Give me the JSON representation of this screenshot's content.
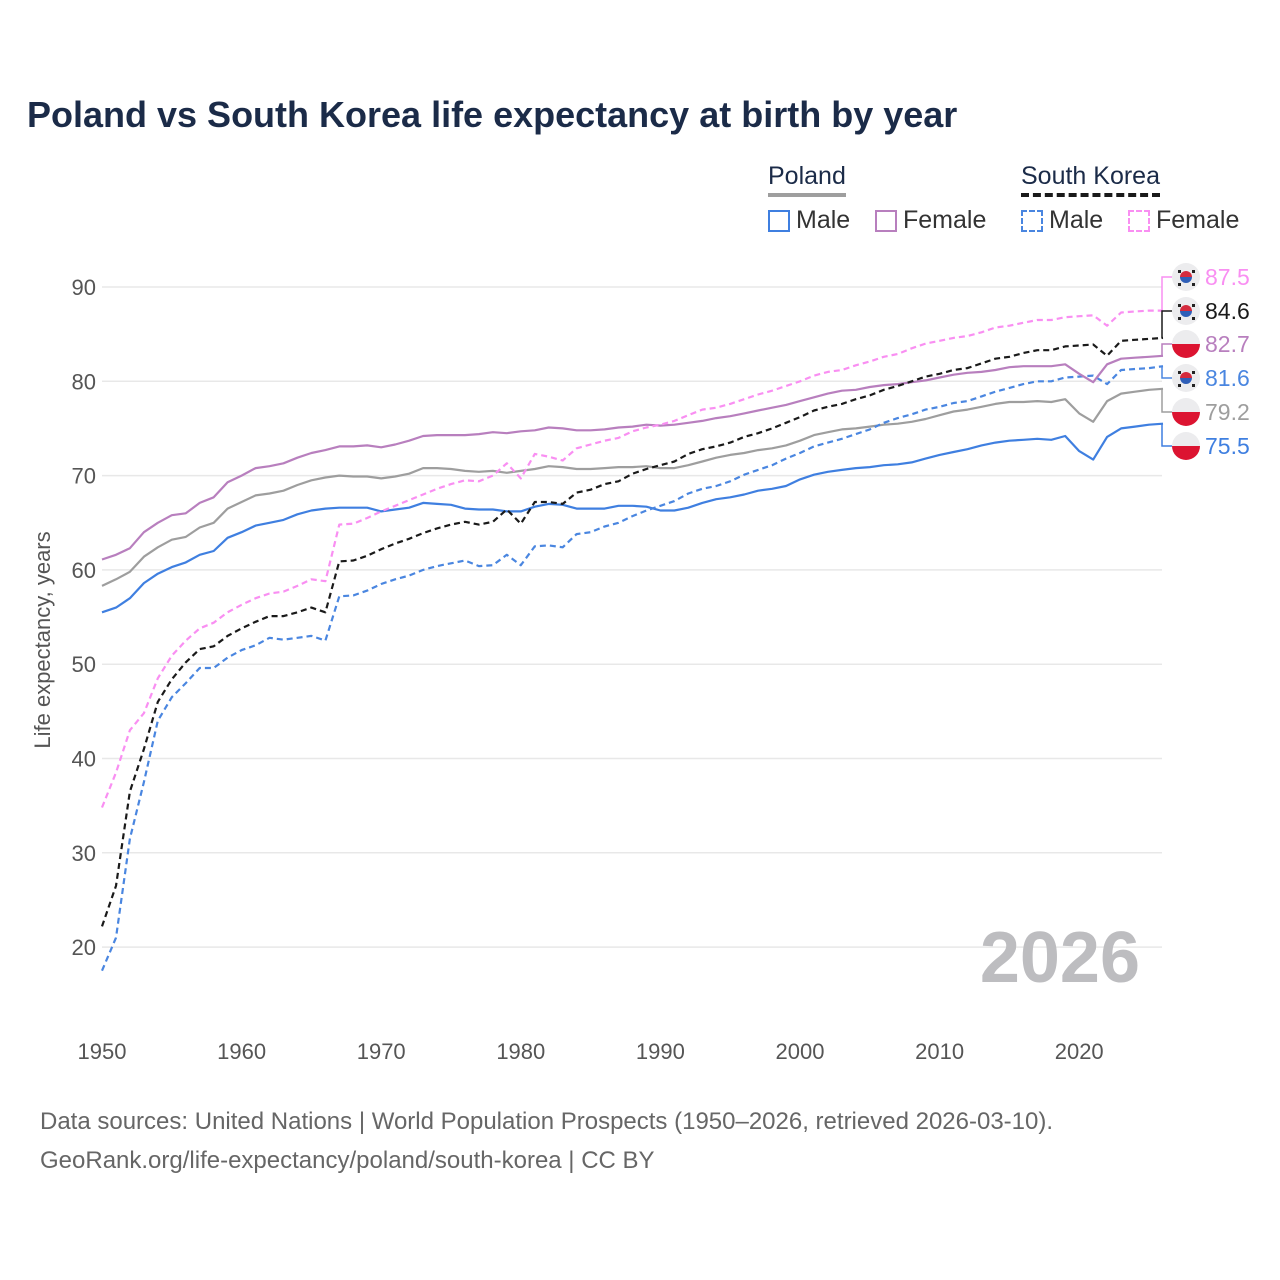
{
  "chart_data": {
    "type": "line",
    "title": "Poland vs South Korea life expectancy at birth by year",
    "xlabel": "",
    "ylabel": "Life expectancy, years",
    "xlim": [
      1950,
      2026
    ],
    "ylim": [
      15,
      92
    ],
    "x_ticks": [
      1950,
      1960,
      1970,
      1980,
      1990,
      2000,
      2010,
      2020
    ],
    "y_ticks": [
      20,
      30,
      40,
      50,
      60,
      70,
      80,
      90
    ],
    "grid": true,
    "year_watermark": "2026",
    "legend": {
      "placement": "top-right",
      "groups": [
        {
          "name": "Poland",
          "items": [
            "Male",
            "Female"
          ]
        },
        {
          "name": "South Korea",
          "items": [
            "Male",
            "Female"
          ]
        }
      ]
    },
    "x_start": 1950,
    "series": [
      {
        "name": "South Korea Female",
        "color": "#f98ff2",
        "dashed": true,
        "flag": "south-korea",
        "end_label": "87.5",
        "values": [
          34.8,
          38.5,
          43,
          44.8,
          48.5,
          50.9,
          52.5,
          53.8,
          54.4,
          55.5,
          56.3,
          57,
          57.5,
          57.7,
          58.3,
          59,
          58.8,
          64.8,
          64.9,
          65.5,
          66.2,
          66.8,
          67.4,
          68,
          68.6,
          69.1,
          69.5,
          69.4,
          70,
          71.3,
          69.7,
          72.3,
          72,
          71.6,
          72.9,
          73.3,
          73.7,
          74,
          74.7,
          75.1,
          75.4,
          75.8,
          76.4,
          77,
          77.2,
          77.6,
          78.1,
          78.6,
          79,
          79.5,
          80,
          80.6,
          81,
          81.2,
          81.7,
          82.1,
          82.6,
          82.9,
          83.5,
          84,
          84.3,
          84.6,
          84.8,
          85.2,
          85.7,
          85.9,
          86.2,
          86.5,
          86.5,
          86.8,
          86.9,
          87,
          85.9,
          87.3,
          87.4,
          87.5,
          87.5
        ]
      },
      {
        "name": "South Korea",
        "color": "#1a1a1a",
        "dashed": true,
        "flag": "south-korea",
        "end_label": "84.6",
        "values": [
          22.2,
          26.5,
          36.5,
          41,
          46,
          48.4,
          50.2,
          51.6,
          51.9,
          53,
          53.8,
          54.5,
          55.1,
          55.1,
          55.5,
          56,
          55.5,
          60.9,
          61,
          61.5,
          62.2,
          62.8,
          63.3,
          63.9,
          64.4,
          64.8,
          65.1,
          64.8,
          65.1,
          66.4,
          64.9,
          67.2,
          67.2,
          67,
          68.2,
          68.5,
          69.1,
          69.4,
          70.2,
          70.7,
          71.1,
          71.5,
          72.3,
          72.8,
          73.1,
          73.5,
          74.1,
          74.5,
          75,
          75.6,
          76.2,
          76.9,
          77.3,
          77.6,
          78.1,
          78.5,
          79.1,
          79.5,
          80,
          80.5,
          80.8,
          81.2,
          81.4,
          81.9,
          82.4,
          82.6,
          83,
          83.3,
          83.3,
          83.7,
          83.8,
          83.9,
          82.7,
          84.3,
          84.4,
          84.5,
          84.6
        ]
      },
      {
        "name": "Poland Female",
        "color": "#b87fbe",
        "dashed": false,
        "flag": "poland",
        "end_label": "82.7",
        "values": [
          61.1,
          61.6,
          62.3,
          64,
          65,
          65.8,
          66,
          67.1,
          67.7,
          69.3,
          70,
          70.8,
          71,
          71.3,
          71.9,
          72.4,
          72.7,
          73.1,
          73.1,
          73.2,
          73,
          73.3,
          73.7,
          74.2,
          74.3,
          74.3,
          74.3,
          74.4,
          74.6,
          74.5,
          74.7,
          74.8,
          75.1,
          75,
          74.8,
          74.8,
          74.9,
          75.1,
          75.2,
          75.4,
          75.3,
          75.4,
          75.6,
          75.8,
          76.1,
          76.3,
          76.6,
          76.9,
          77.2,
          77.5,
          77.9,
          78.3,
          78.7,
          79,
          79.1,
          79.4,
          79.6,
          79.7,
          79.9,
          80.1,
          80.4,
          80.7,
          80.9,
          81,
          81.2,
          81.5,
          81.6,
          81.6,
          81.6,
          81.8,
          80.8,
          79.9,
          81.8,
          82.4,
          82.5,
          82.6,
          82.7
        ]
      },
      {
        "name": "South Korea Male",
        "color": "#4a86e0",
        "dashed": true,
        "flag": "south-korea",
        "end_label": "81.6",
        "values": [
          17.5,
          21,
          31.5,
          37.5,
          44,
          46.5,
          48,
          49.6,
          49.6,
          50.7,
          51.5,
          52,
          52.8,
          52.6,
          52.8,
          53,
          52.5,
          57.2,
          57.3,
          57.8,
          58.5,
          59,
          59.4,
          60,
          60.4,
          60.7,
          61,
          60.4,
          60.5,
          61.6,
          60.5,
          62.5,
          62.6,
          62.4,
          63.8,
          64,
          64.6,
          65,
          65.7,
          66.3,
          66.8,
          67.3,
          68.1,
          68.6,
          68.9,
          69.4,
          70.1,
          70.6,
          71.1,
          71.8,
          72.4,
          73.1,
          73.5,
          73.9,
          74.4,
          74.9,
          75.6,
          76.1,
          76.5,
          77,
          77.3,
          77.7,
          77.9,
          78.4,
          78.9,
          79.3,
          79.7,
          80,
          80,
          80.4,
          80.5,
          80.6,
          79.7,
          81.2,
          81.3,
          81.4,
          81.6
        ]
      },
      {
        "name": "Poland",
        "color": "#9e9e9e",
        "dashed": false,
        "flag": "poland",
        "end_label": "79.2",
        "values": [
          58.3,
          59,
          59.8,
          61.4,
          62.4,
          63.2,
          63.5,
          64.5,
          65,
          66.5,
          67.2,
          67.9,
          68.1,
          68.4,
          69,
          69.5,
          69.8,
          70,
          69.9,
          69.9,
          69.7,
          69.9,
          70.2,
          70.8,
          70.8,
          70.7,
          70.5,
          70.4,
          70.5,
          70.3,
          70.5,
          70.7,
          71,
          70.9,
          70.7,
          70.7,
          70.8,
          70.9,
          70.9,
          71,
          70.8,
          70.8,
          71.1,
          71.5,
          71.9,
          72.2,
          72.4,
          72.7,
          72.9,
          73.2,
          73.7,
          74.3,
          74.6,
          74.9,
          75,
          75.2,
          75.4,
          75.5,
          75.7,
          76,
          76.4,
          76.8,
          77,
          77.3,
          77.6,
          77.8,
          77.8,
          77.9,
          77.8,
          78.1,
          76.6,
          75.7,
          77.9,
          78.7,
          78.9,
          79.1,
          79.2
        ]
      },
      {
        "name": "Poland Male",
        "color": "#3f7fe0",
        "dashed": false,
        "flag": "poland",
        "end_label": "75.5",
        "values": [
          55.5,
          56,
          57,
          58.6,
          59.6,
          60.3,
          60.8,
          61.6,
          62,
          63.4,
          64,
          64.7,
          65,
          65.3,
          65.9,
          66.3,
          66.5,
          66.6,
          66.6,
          66.6,
          66.2,
          66.4,
          66.6,
          67.1,
          67,
          66.9,
          66.5,
          66.4,
          66.4,
          66.2,
          66.2,
          66.7,
          67,
          66.9,
          66.5,
          66.5,
          66.5,
          66.8,
          66.8,
          66.7,
          66.3,
          66.3,
          66.6,
          67.1,
          67.5,
          67.7,
          68,
          68.4,
          68.6,
          68.9,
          69.6,
          70.1,
          70.4,
          70.6,
          70.8,
          70.9,
          71.1,
          71.2,
          71.4,
          71.8,
          72.2,
          72.5,
          72.8,
          73.2,
          73.5,
          73.7,
          73.8,
          73.9,
          73.8,
          74.2,
          72.6,
          71.7,
          74.1,
          75,
          75.2,
          75.4,
          75.5
        ]
      }
    ]
  },
  "legend_labels": {
    "poland": "Poland",
    "south_korea": "South Korea",
    "male": "Male",
    "female": "Female"
  },
  "footer": {
    "line1": "Data sources: United Nations | World Population Prospects (1950–2026, retrieved 2026-03-10).",
    "line2": "GeoRank.org/life-expectancy/poland/south-korea | CC BY"
  }
}
